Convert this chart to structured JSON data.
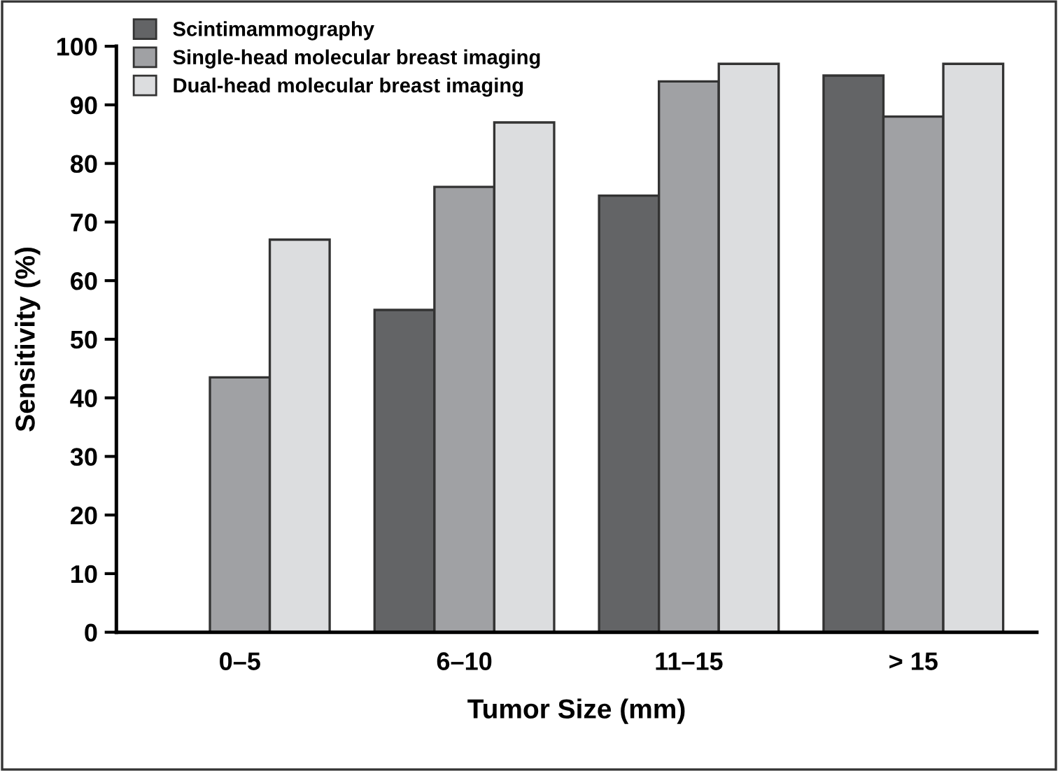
{
  "chart_data": {
    "type": "bar",
    "xlabel": "Tumor Size (mm)",
    "ylabel": "Sensitivity (%)",
    "categories": [
      "0–5",
      "6–10",
      "11–15",
      "> 15"
    ],
    "series": [
      {
        "name": "Scintimammography",
        "color": "#636466",
        "values": [
          null,
          55,
          74.5,
          95
        ]
      },
      {
        "name": "Single-head molecular breast imaging",
        "color": "#a0a1a4",
        "values": [
          43.5,
          76,
          94,
          88
        ]
      },
      {
        "name": "Dual-head molecular breast imaging",
        "color": "#dcdddf",
        "values": [
          67,
          87,
          97,
          97
        ]
      }
    ],
    "ylim": [
      0,
      100
    ],
    "yticks": [
      0,
      10,
      20,
      30,
      40,
      50,
      60,
      70,
      80,
      90,
      100
    ],
    "grid": false,
    "legend": "top left"
  }
}
